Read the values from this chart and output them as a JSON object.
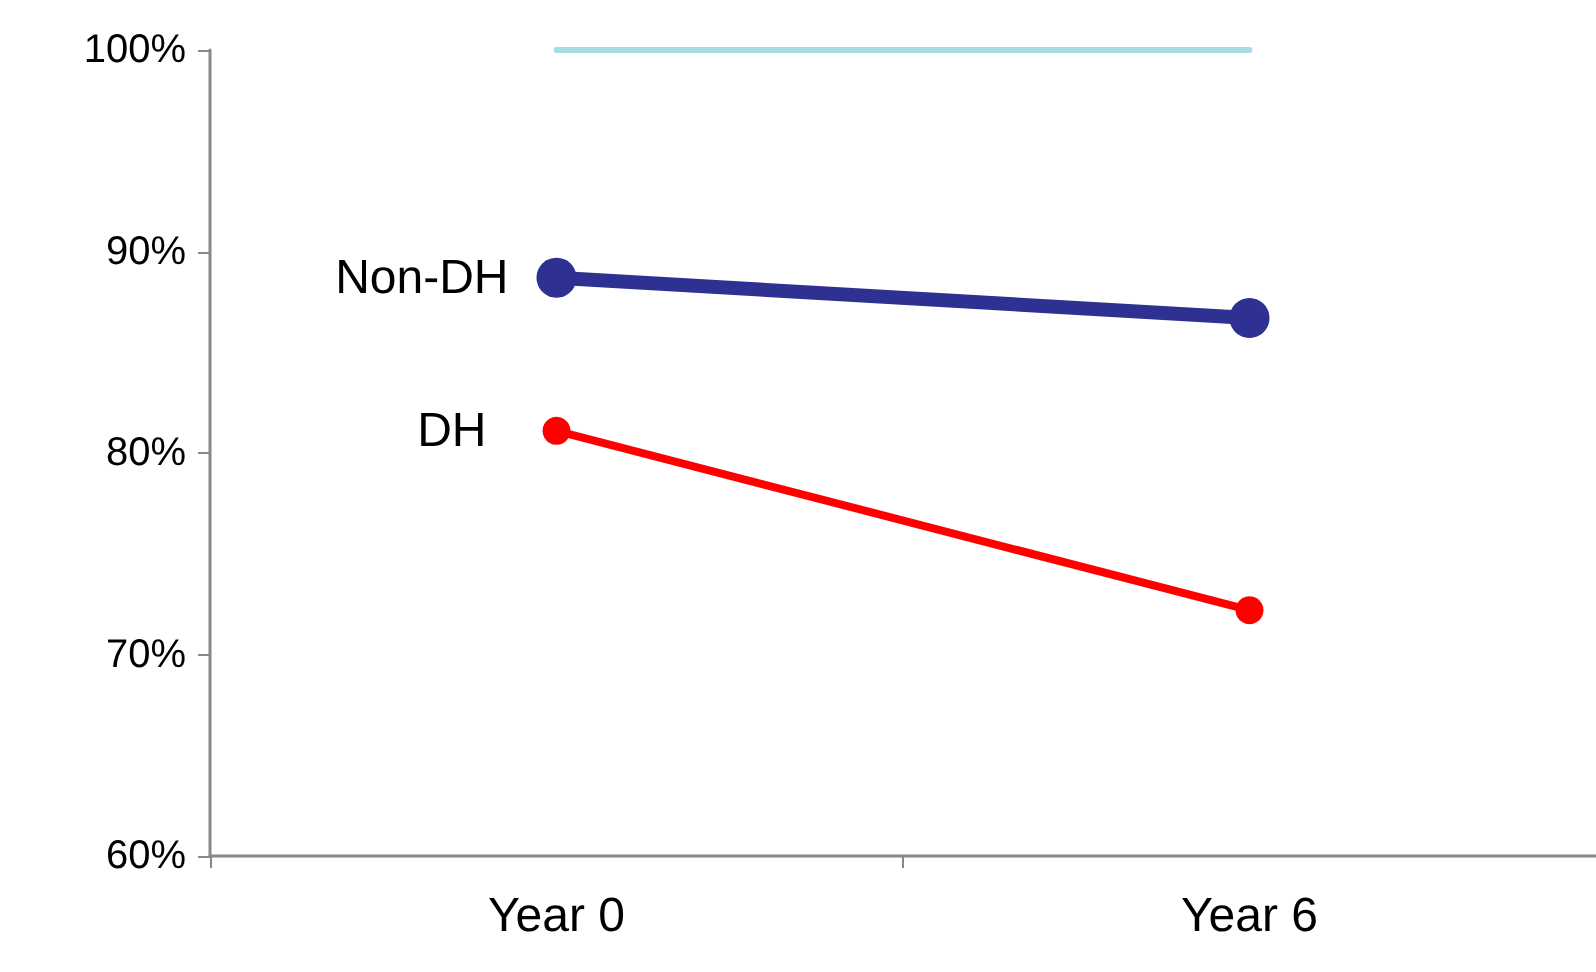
{
  "chart_data": {
    "type": "line",
    "categories": [
      "Year 0",
      "Year 6"
    ],
    "series": [
      {
        "color": "#a8dde6",
        "marker": "none",
        "values": [
          100,
          100
        ]
      },
      {
        "name": "Non-DH",
        "color": "#2e3192",
        "values": [
          88.7,
          86.7
        ]
      },
      {
        "name": "DH",
        "color": "#ff0000",
        "values": [
          81.1,
          72.2
        ]
      }
    ],
    "ylim": [
      60,
      100
    ],
    "yticks": [
      {
        "value": 60,
        "label": "60%"
      },
      {
        "value": 70,
        "label": "70%"
      },
      {
        "value": 80,
        "label": "80%"
      },
      {
        "value": 90,
        "label": "90%"
      },
      {
        "value": 100,
        "label": "100%"
      }
    ],
    "grid": false,
    "legend": false,
    "marker": "circle",
    "line_style": "solid"
  }
}
